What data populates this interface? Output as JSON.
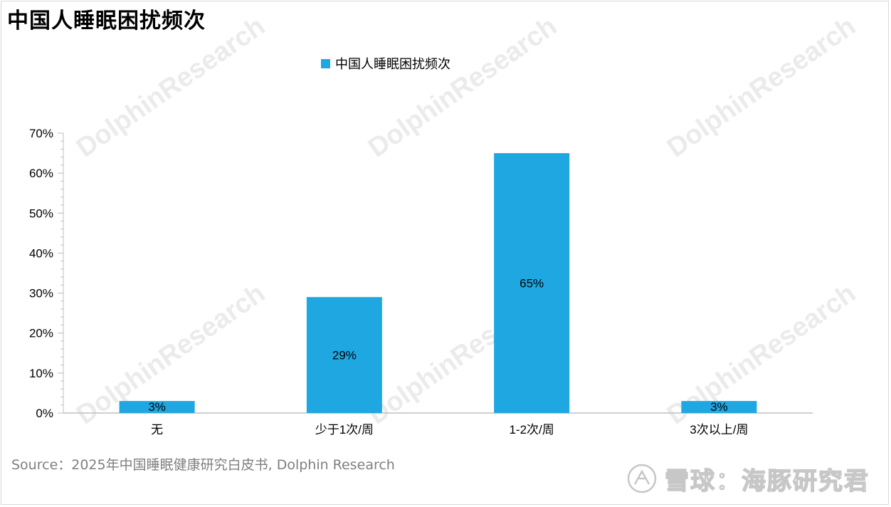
{
  "page": {
    "title": "中国人睡眠困扰频次",
    "source": "Source：2025年中国睡眠健康研究白皮书, Dolphin Research",
    "brand": "雪球：海豚研究君",
    "watermark": "DolphinResearch"
  },
  "colors": {
    "bar": "#1ea7e1",
    "axis": "#bfbfbf",
    "text": "#000000",
    "source_text": "#7f7f7f"
  },
  "chart_data": {
    "type": "bar",
    "title": "",
    "categories": [
      "无",
      "少于1次/周",
      "1-2次/周",
      "3次以上/周"
    ],
    "series": [
      {
        "name": "中国人睡眠困扰频次",
        "values": [
          3,
          29,
          65,
          3
        ]
      }
    ],
    "data_labels": [
      "3%",
      "29%",
      "65%",
      "3%"
    ],
    "y_ticks": [
      "0%",
      "10%",
      "20%",
      "30%",
      "40%",
      "50%",
      "60%",
      "70%"
    ],
    "ylim": [
      0,
      70
    ],
    "y_unit": "%",
    "grid": false,
    "legend": "top-center"
  }
}
